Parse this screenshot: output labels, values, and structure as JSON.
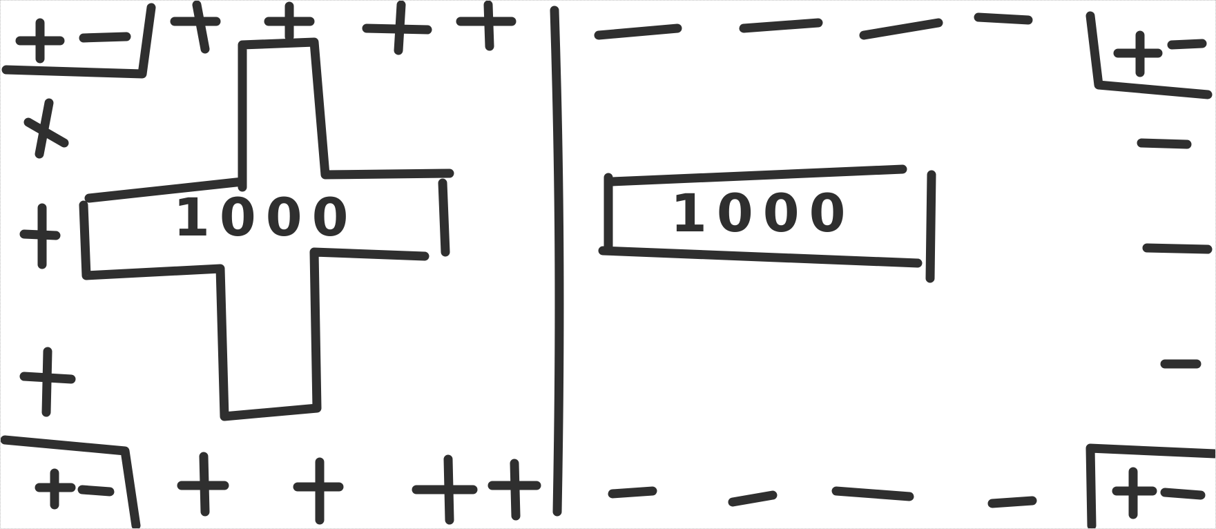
{
  "sketch": {
    "left_panel": {
      "value_label": "1000",
      "center_symbol": "plus-sign"
    },
    "right_panel": {
      "value_label": "1000",
      "center_symbol": "minus-sign"
    }
  },
  "colors": {
    "ink": "#2f2f2f",
    "paper": "#ffffff"
  }
}
